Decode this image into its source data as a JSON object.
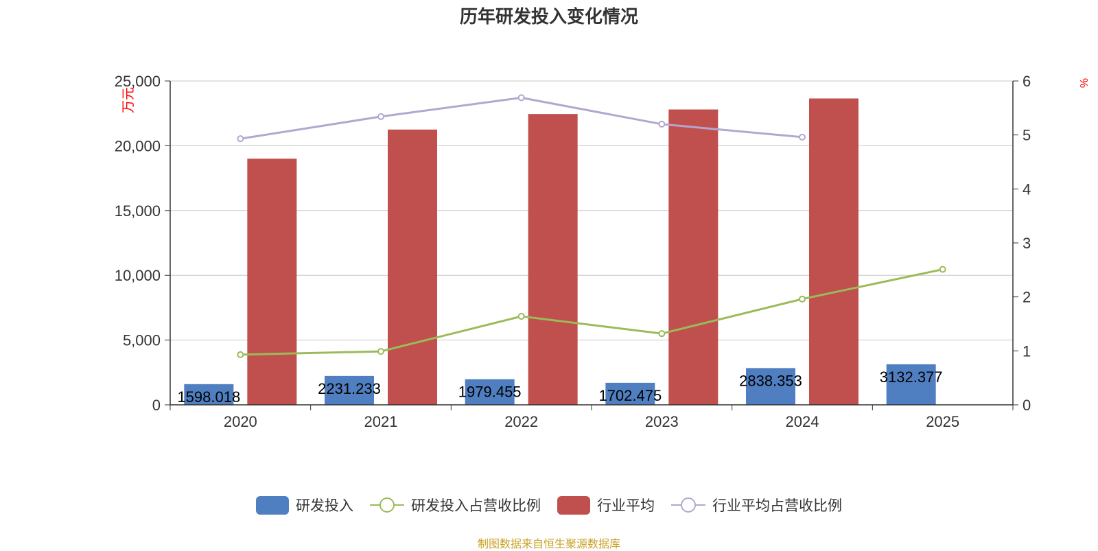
{
  "title": "历年研发投入变化情况",
  "source": "制图数据来自恒生聚源数据库",
  "colors": {
    "rd": "#4f7fc0",
    "rd_ratio": "#9bbb59",
    "industry": "#c0504d",
    "industry_ratio": "#b3a7d0",
    "source_text": "#c9a227",
    "axis_unit": "#ff0000"
  },
  "chart_data": {
    "type": "bar",
    "categories": [
      "2020",
      "2021",
      "2022",
      "2023",
      "2024",
      "2025"
    ],
    "y_left": {
      "label": "万元",
      "min": 0,
      "max": 25000,
      "ticks": [
        "0",
        "5,000",
        "10,000",
        "15,000",
        "20,000",
        "25,000"
      ]
    },
    "y_right": {
      "label": "%",
      "min": 0,
      "max": 6,
      "ticks": [
        "0",
        "1",
        "2",
        "3",
        "4",
        "5",
        "6"
      ]
    },
    "grid": true,
    "legend_position": "bottom",
    "series": [
      {
        "name": "研发投入",
        "type": "bar",
        "axis": "left",
        "values": [
          1598.018,
          2231.233,
          1979.455,
          1702.475,
          2838.353,
          3132.377
        ],
        "labels": [
          "1598.018",
          "2231.233",
          "1979.455",
          "1702.475",
          "2838.353",
          "3132.377"
        ]
      },
      {
        "name": "研发投入占营收比例",
        "type": "line",
        "axis": "right",
        "values": [
          0.93,
          0.99,
          1.64,
          1.32,
          1.96,
          2.51
        ]
      },
      {
        "name": "行业平均",
        "type": "bar",
        "axis": "left",
        "values": [
          19000,
          21250,
          22450,
          22800,
          23650,
          null
        ]
      },
      {
        "name": "行业平均占营收比例",
        "type": "line",
        "axis": "right",
        "values": [
          4.93,
          5.34,
          5.69,
          5.2,
          4.96,
          null
        ]
      }
    ]
  }
}
